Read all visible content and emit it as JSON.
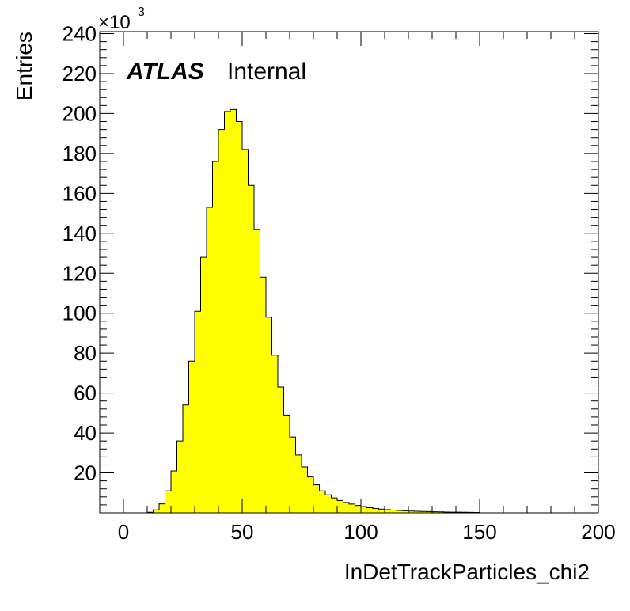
{
  "chart_data": {
    "type": "bar",
    "xlabel": "InDetTrackParticles_chi2",
    "ylabel": "Entries",
    "y_multiplier": "×10",
    "y_multiplier_exp": "3",
    "atlas_label": "ATLAS",
    "atlas_status": "Internal",
    "xlim": [
      -10,
      200
    ],
    "ylim": [
      0,
      241
    ],
    "x_ticks": [
      "0",
      "50",
      "100",
      "150",
      "200"
    ],
    "x_tick_values": [
      0,
      50,
      100,
      150,
      200
    ],
    "y_ticks": [
      "20",
      "40",
      "60",
      "80",
      "100",
      "120",
      "140",
      "160",
      "180",
      "200",
      "220",
      "240"
    ],
    "y_tick_values": [
      20,
      40,
      60,
      80,
      100,
      120,
      140,
      160,
      180,
      200,
      220,
      240
    ],
    "bin_width": 2.5,
    "bin_start": 0,
    "fill_color": "#ffff00",
    "line_color": "#000000",
    "values": [
      0,
      0,
      0,
      0,
      0.3,
      1.5,
      4.5,
      11,
      21,
      36,
      54,
      76,
      101,
      128,
      153,
      176,
      192,
      201,
      202,
      196,
      182,
      164,
      142,
      118,
      98,
      79,
      63,
      49,
      38,
      29,
      23,
      18,
      14,
      11,
      9,
      7.5,
      6.2,
      5.2,
      4.4,
      3.7,
      3.1,
      2.6,
      2.2,
      1.9,
      1.6,
      1.4,
      1.2,
      1.05,
      0.9,
      0.8,
      0.7,
      0.62,
      0.55,
      0.48,
      0.42,
      0.37,
      0.33,
      0.29,
      0.25,
      0.21
    ]
  }
}
